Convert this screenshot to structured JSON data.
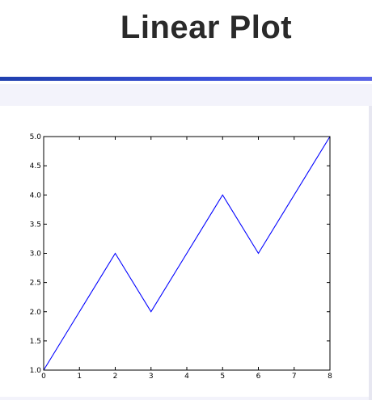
{
  "header": {
    "title": "Linear Plot"
  },
  "colors": {
    "accent_bar": "#2a45c4",
    "line": "#0000ff"
  },
  "chart_data": {
    "type": "line",
    "title": "Linear Plot",
    "xlabel": "",
    "ylabel": "",
    "x": [
      0,
      1,
      2,
      3,
      4,
      5,
      6,
      7,
      8
    ],
    "series": [
      {
        "values": [
          1.0,
          2.0,
          3.0,
          2.0,
          3.0,
          4.0,
          3.0,
          4.0,
          5.0
        ]
      }
    ],
    "xlim": [
      0,
      8
    ],
    "ylim": [
      1.0,
      5.0
    ],
    "xticks": [
      "0",
      "1",
      "2",
      "3",
      "4",
      "5",
      "6",
      "7",
      "8"
    ],
    "yticks": [
      "1.0",
      "1.5",
      "2.0",
      "2.5",
      "3.0",
      "3.5",
      "4.0",
      "4.5",
      "5.0"
    ],
    "grid": false
  }
}
